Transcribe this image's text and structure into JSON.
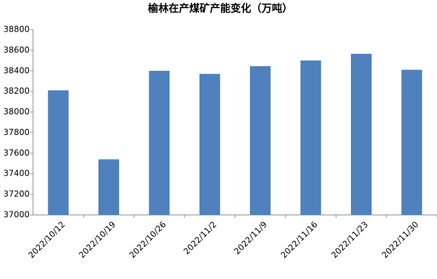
{
  "chart_data": {
    "type": "bar",
    "title": "榆林在产煤矿产能变化（万吨）",
    "categories": [
      "2022/10/12",
      "2022/10/19",
      "2022/10/26",
      "2022/11/2",
      "2022/11/9",
      "2022/11/16",
      "2022/11/23",
      "2022/11/30"
    ],
    "values": [
      38210,
      37540,
      38400,
      38370,
      38445,
      38500,
      38565,
      38410
    ],
    "color": "#4f81bd",
    "ylim": [
      37000,
      38800
    ],
    "yticks": [
      37000,
      37200,
      37400,
      37600,
      37800,
      38000,
      38200,
      38400,
      38600,
      38800
    ],
    "grid": false
  }
}
